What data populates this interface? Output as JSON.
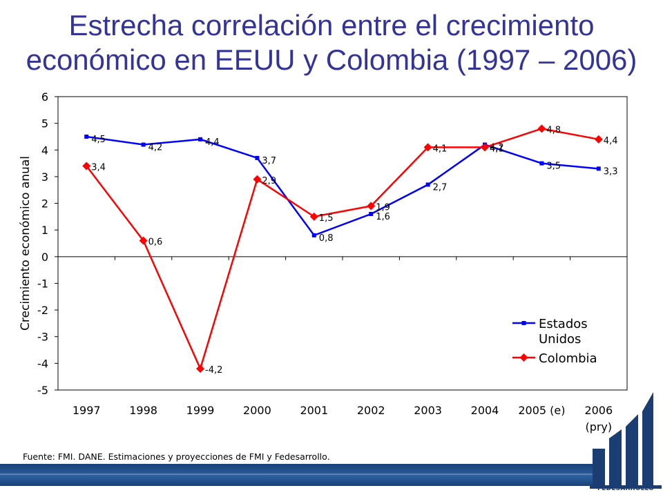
{
  "title": {
    "line1": "Estrecha correlación entre el crecimiento",
    "line2": "económico en EEUU y Colombia (1997 – 2006)"
  },
  "chart_data": {
    "type": "line",
    "title": "Estrecha correlación entre el crecimiento económico en EEUU y Colombia (1997 – 2006)",
    "ylabel": "Crecimiento económico anual",
    "xlabel": "",
    "ylim": [
      -5,
      6
    ],
    "yticks": [
      "6",
      "5",
      "4",
      "3",
      "2",
      "1",
      "0",
      "-1",
      "-2",
      "-3",
      "-4",
      "-5"
    ],
    "categories": [
      "1997",
      "1998",
      "1999",
      "2000",
      "2001",
      "2002",
      "2003",
      "2004",
      "2005 (e)",
      "2006"
    ],
    "category_sublabels": [
      "",
      "",
      "",
      "",
      "",
      "",
      "",
      "",
      "",
      "(pry)"
    ],
    "legend_placement": "bottom-right",
    "grid": false,
    "series": [
      {
        "name": "Estados Unidos",
        "color": "#0000ff",
        "marker": "square",
        "values": [
          4.5,
          4.2,
          4.4,
          3.7,
          0.8,
          1.6,
          2.7,
          4.2,
          3.5,
          3.3
        ],
        "labels": [
          "4,5",
          "4,2",
          "4,4",
          "3,7",
          "0,8",
          "1,6",
          "2,7",
          "4,2",
          "3,5",
          "3,3"
        ]
      },
      {
        "name": "Colombia",
        "color": "#ff0000",
        "marker": "diamond",
        "values": [
          3.4,
          0.6,
          -4.2,
          2.9,
          1.5,
          1.9,
          4.1,
          4.1,
          4.8,
          4.4
        ],
        "labels": [
          "3,4",
          "0,6",
          "-4,2",
          "2,9",
          "1,5",
          "1,9",
          "4,1",
          "4,1",
          "4,8",
          "4,4"
        ]
      }
    ],
    "legend": [
      "Estados Unidos",
      "Colombia"
    ]
  },
  "source": "Fuente: FMI. DANE. Estimaciones y proyecciones de FMI y Fedesarrollo.",
  "logo": {
    "text": "FEDESARROLLO",
    "icon": "fedesarrollo-logo-icon",
    "color": "#1a3d73"
  }
}
